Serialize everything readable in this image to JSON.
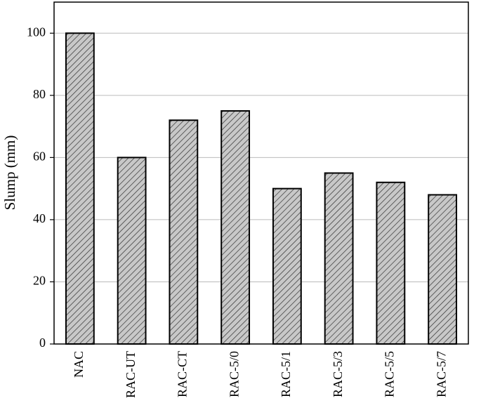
{
  "chart_data": {
    "type": "bar",
    "y_label": "Slump (mm)",
    "categories": [
      "NAC",
      "RAC-UT",
      "RAC-CT",
      "RAC-5/0",
      "RAC-5/1",
      "RAC-5/3",
      "RAC-5/5",
      "RAC-5/7"
    ],
    "values": [
      100,
      60,
      72,
      75,
      50,
      55,
      52,
      48
    ],
    "color": "#c8c8c8",
    "ylim": [
      0,
      110
    ],
    "yticks": [
      0,
      20,
      40,
      60,
      80,
      100
    ],
    "grid": true
  }
}
